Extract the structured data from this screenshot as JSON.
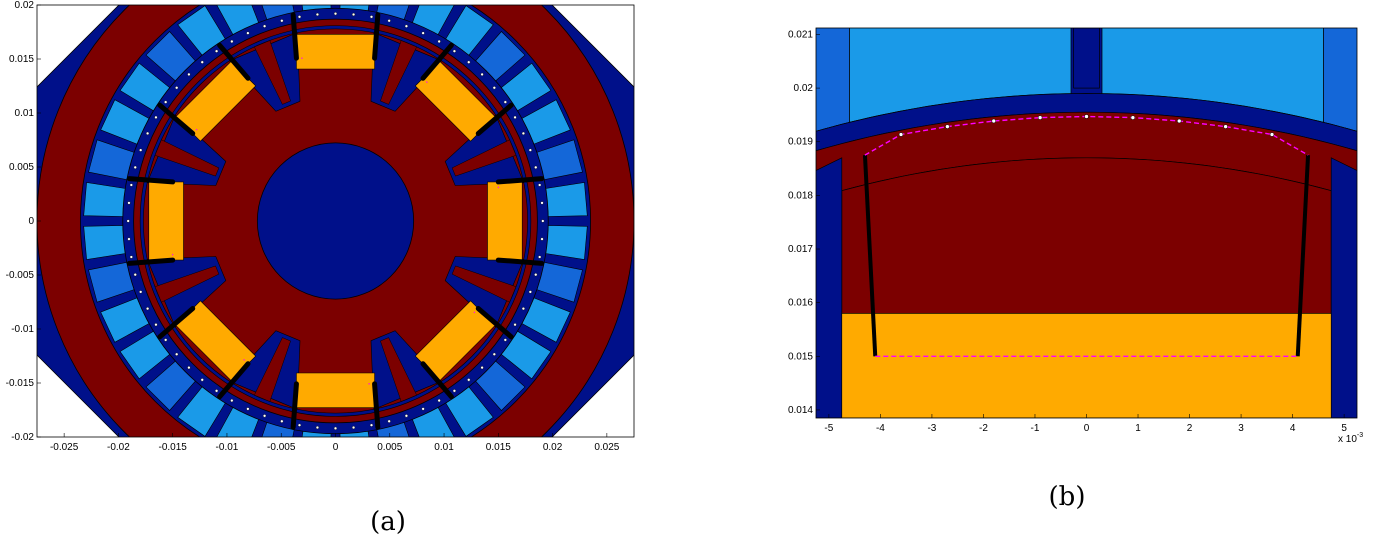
{
  "figures": [
    {
      "caption": "(a)",
      "x_ticks": [
        "-0.025",
        "-0.02",
        "-0.015",
        "-0.01",
        "-0.005",
        "0",
        "0.005",
        "0.01",
        "0.015",
        "0.02",
        "0.025"
      ],
      "y_ticks": [
        "0.02",
        "0.015",
        "0.01",
        "0.005",
        "0",
        "-0.005",
        "-0.01",
        "-0.015",
        "-0.02"
      ],
      "xlim": [
        -0.0275,
        0.0275
      ],
      "ylim": [
        -0.02,
        0.02
      ]
    },
    {
      "caption": "(b)",
      "x_ticks": [
        "-5",
        "-4",
        "-3",
        "-2",
        "-1",
        "0",
        "1",
        "2",
        "3",
        "4",
        "5"
      ],
      "y_ticks": [
        "0.021",
        "0.02",
        "0.019",
        "0.018",
        "0.017",
        "0.016",
        "0.015",
        "0.014"
      ],
      "x_multiplier": "x 10",
      "x_exponent": "-3",
      "xlim": [
        -5.25,
        5.25
      ],
      "ylim": [
        0.01385,
        0.02112
      ]
    }
  ],
  "colors": {
    "outer_blue": "#00108a",
    "stator_red": "#7c0000",
    "magnet_light": "#1a9ae8",
    "magnet_mid": "#1467d8",
    "coil": "#ffaa00",
    "dash": "#ff00ff",
    "point": "#ffffff"
  }
}
